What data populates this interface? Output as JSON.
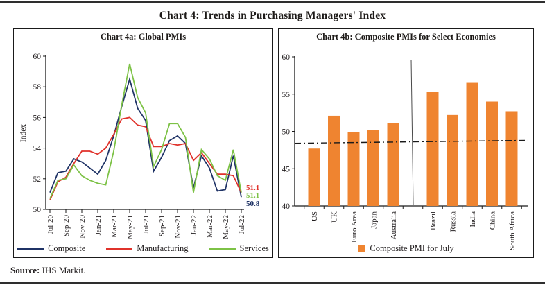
{
  "figure": {
    "title": "Chart 4: Trends in Purchasing Managers' Index",
    "source_label": "Source:",
    "source_text": " IHS Markit."
  },
  "colors": {
    "composite": "#1F3366",
    "manufacturing": "#E0322B",
    "services": "#7DC246",
    "bar_orange": "#EF8430",
    "axis": "#1a1a1a",
    "divider": "#4a4a4a",
    "trend_dash": "#1a1a1a"
  },
  "chart_data": [
    {
      "type": "line",
      "title": "Chart 4a: Global PMIs",
      "ylabel": "Index",
      "ylim": [
        50,
        60
      ],
      "yticks": [
        50,
        52,
        54,
        56,
        58,
        60
      ],
      "xtick_every": 2,
      "grid": false,
      "legend_position": "bottom",
      "x": [
        "Jul-20",
        "Aug-20",
        "Sep-20",
        "Oct-20",
        "Nov-20",
        "Dec-20",
        "Jan-21",
        "Feb-21",
        "Mar-21",
        "Apr-21",
        "May-21",
        "Jun-21",
        "Jul-21",
        "Aug-21",
        "Sep-21",
        "Oct-21",
        "Nov-21",
        "Dec-21",
        "Jan-22",
        "Feb-22",
        "Mar-22",
        "Apr-22",
        "May-22",
        "Jun-22",
        "Jul-22"
      ],
      "series": [
        {
          "name": "Composite",
          "color": "#1F3366",
          "end_label": "50.8",
          "values": [
            51.1,
            52.4,
            52.5,
            53.3,
            53.1,
            52.7,
            52.3,
            53.2,
            54.8,
            56.7,
            58.5,
            56.6,
            55.8,
            52.5,
            53.4,
            54.5,
            54.8,
            54.3,
            51.4,
            53.5,
            52.7,
            51.2,
            51.3,
            53.5,
            50.8
          ]
        },
        {
          "name": "Manufacturing",
          "color": "#E0322B",
          "end_label": "51.1",
          "values": [
            50.6,
            51.8,
            52.1,
            53.0,
            53.8,
            53.8,
            53.6,
            54.0,
            54.9,
            55.9,
            56.0,
            55.5,
            55.4,
            54.1,
            54.1,
            54.3,
            54.2,
            54.3,
            53.2,
            53.7,
            53.0,
            52.3,
            52.3,
            52.2,
            51.1
          ]
        },
        {
          "name": "Services",
          "color": "#7DC246",
          "end_label": "51.1",
          "values": [
            50.7,
            51.9,
            52.0,
            52.9,
            52.2,
            51.9,
            51.7,
            51.6,
            53.8,
            56.8,
            59.5,
            57.3,
            56.3,
            52.8,
            53.9,
            55.6,
            55.6,
            54.7,
            51.1,
            53.9,
            53.3,
            52.2,
            51.9,
            53.9,
            51.1
          ]
        }
      ]
    },
    {
      "type": "bar",
      "title": "Chart 4b: Composite PMIs for Select Economies",
      "ylim": [
        40,
        60
      ],
      "yticks": [
        40,
        45,
        50,
        55,
        60
      ],
      "bar_color": "#EF8430",
      "legend": "Composite PMI for July",
      "categories": [
        "US",
        "UK",
        "Euro Area",
        "Japan",
        "Australia",
        "Brazil",
        "Russia",
        "India",
        "China",
        "South Africa"
      ],
      "values": [
        47.7,
        52.1,
        49.9,
        50.2,
        51.1,
        55.3,
        52.2,
        56.6,
        54.0,
        52.7
      ],
      "group_divider_after_index": 4,
      "trend_line": {
        "style": "dash-dot",
        "start_value": 48.4,
        "end_value": 48.8
      }
    }
  ]
}
